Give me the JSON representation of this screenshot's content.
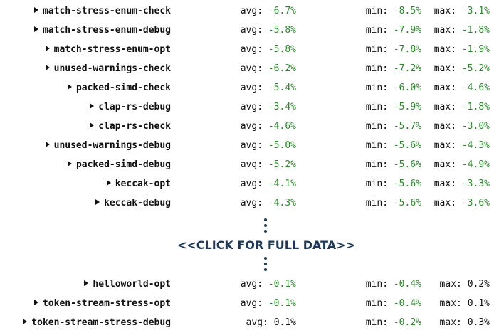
{
  "rows_top": [
    {
      "name": "match-stress-enum-check",
      "avg": "-6.7%",
      "min": "-8.5%",
      "max": "-3.1%"
    },
    {
      "name": "match-stress-enum-debug",
      "avg": "-5.8%",
      "min": "-7.9%",
      "max": "-1.8%"
    },
    {
      "name": "match-stress-enum-opt",
      "avg": "-5.8%",
      "min": "-7.8%",
      "max": "-1.9%"
    },
    {
      "name": "unused-warnings-check",
      "avg": "-6.2%",
      "min": "-7.2%",
      "max": "-5.2%"
    },
    {
      "name": "packed-simd-check",
      "avg": "-5.4%",
      "min": "-6.0%",
      "max": "-4.6%"
    },
    {
      "name": "clap-rs-debug",
      "avg": "-3.4%",
      "min": "-5.9%",
      "max": "-1.8%"
    },
    {
      "name": "clap-rs-check",
      "avg": "-4.6%",
      "min": "-5.7%",
      "max": "-3.0%"
    },
    {
      "name": "unused-warnings-debug",
      "avg": "-5.0%",
      "min": "-5.6%",
      "max": "-4.3%"
    },
    {
      "name": "packed-simd-debug",
      "avg": "-5.2%",
      "min": "-5.6%",
      "max": "-4.9%"
    },
    {
      "name": "keccak-opt",
      "avg": "-4.1%",
      "min": "-5.6%",
      "max": "-3.3%"
    },
    {
      "name": "keccak-debug",
      "avg": "-4.3%",
      "min": "-5.6%",
      "max": "-3.6%"
    }
  ],
  "click_label": "<<CLICK FOR FULL DATA>>",
  "rows_bottom": [
    {
      "name": "helloworld-opt",
      "avg": "-0.1%",
      "min": "-0.4%",
      "max": "0.2%"
    },
    {
      "name": "token-stream-stress-opt",
      "avg": "-0.1%",
      "min": "-0.4%",
      "max": "0.1%"
    },
    {
      "name": "token-stream-stress-debug",
      "avg": "0.1%",
      "min": "-0.2%",
      "max": "0.3%"
    }
  ],
  "labels": {
    "avg": "avg:",
    "min": "min:",
    "max": "max:"
  },
  "colors": {
    "negative": "#2a8a2a",
    "link": "#1d3a5c"
  },
  "icons": {
    "expand": "triangle-right-icon",
    "ellipsis": "vertical-dots-icon"
  }
}
